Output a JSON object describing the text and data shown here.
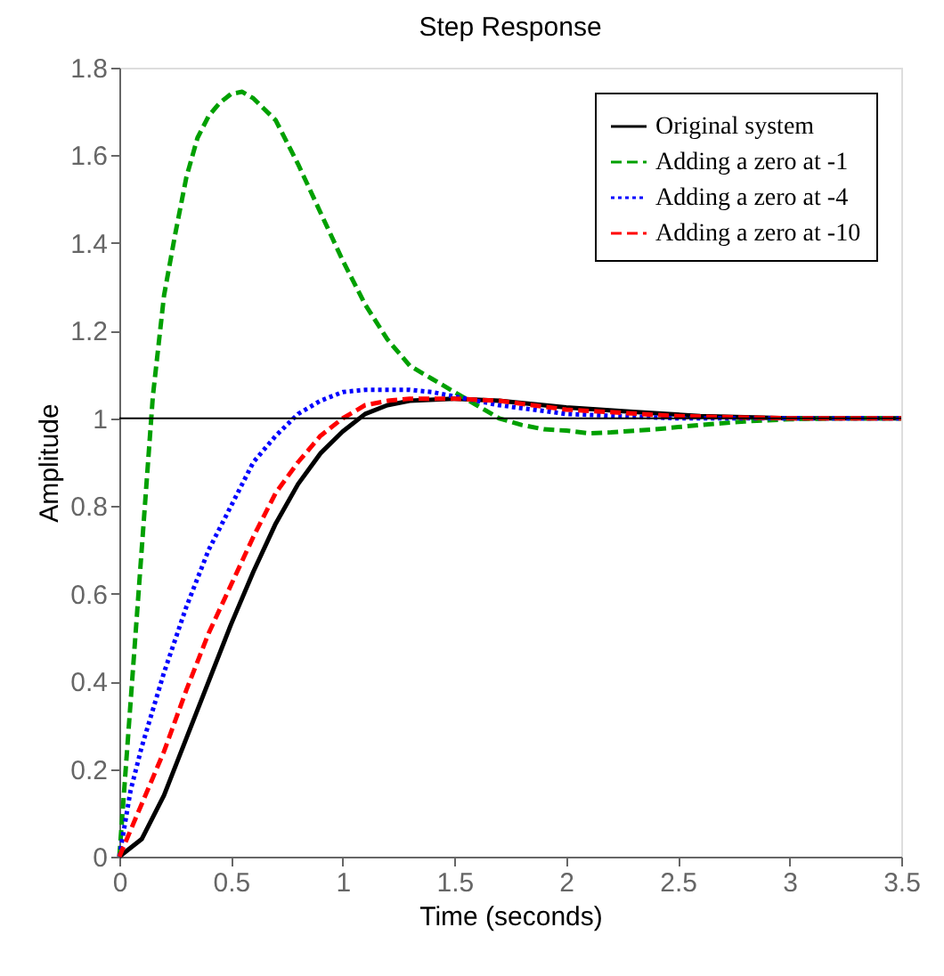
{
  "chart_data": {
    "type": "line",
    "title": "Step Response",
    "xlabel": "Time (seconds)",
    "ylabel": "Amplitude",
    "xlim": [
      0,
      3.5
    ],
    "xticks": [
      0,
      0.5,
      1,
      1.5,
      2,
      2.5,
      3,
      3.5
    ],
    "ylim": [
      0,
      1.8
    ],
    "yticks": [
      0,
      0.2,
      0.4,
      0.6,
      0.8,
      1,
      1.2,
      1.4,
      1.6,
      1.8
    ],
    "grid": false,
    "legend": "top right",
    "marker": "none",
    "ref_lines": [
      {
        "axis": "y",
        "value": 1,
        "color": "#000000",
        "line_style": "solid"
      }
    ],
    "series": [
      {
        "name": "Original system",
        "color": "#000000",
        "line_style": "solid",
        "x": [
          0,
          0.1,
          0.2,
          0.3,
          0.4,
          0.5,
          0.6,
          0.7,
          0.8,
          0.9,
          1.0,
          1.1,
          1.2,
          1.3,
          1.5,
          1.7,
          2.0,
          2.3,
          2.6,
          3.0,
          3.5
        ],
        "values": [
          0,
          0.04,
          0.14,
          0.27,
          0.4,
          0.53,
          0.65,
          0.76,
          0.85,
          0.92,
          0.97,
          1.01,
          1.03,
          1.04,
          1.045,
          1.04,
          1.025,
          1.015,
          1.005,
          1.0,
          1.0
        ]
      },
      {
        "name": "Adding a zero at -1",
        "color": "#00a000",
        "line_style": "dashed",
        "x": [
          0,
          0.05,
          0.1,
          0.15,
          0.2,
          0.25,
          0.3,
          0.35,
          0.4,
          0.45,
          0.5,
          0.55,
          0.6,
          0.7,
          0.8,
          0.9,
          1.0,
          1.1,
          1.2,
          1.3,
          1.4,
          1.5,
          1.6,
          1.7,
          1.8,
          1.9,
          2.0,
          2.1,
          2.2,
          2.4,
          2.6,
          2.8,
          3.0,
          3.2,
          3.5
        ],
        "values": [
          0,
          0.35,
          0.7,
          1.05,
          1.28,
          1.42,
          1.55,
          1.64,
          1.69,
          1.72,
          1.74,
          1.745,
          1.73,
          1.68,
          1.58,
          1.47,
          1.36,
          1.26,
          1.18,
          1.12,
          1.09,
          1.06,
          1.03,
          1.0,
          0.985,
          0.975,
          0.972,
          0.966,
          0.968,
          0.975,
          0.985,
          0.993,
          0.998,
          1.0,
          1.0
        ]
      },
      {
        "name": "Adding a zero at -4",
        "color": "#0000ff",
        "line_style": "dotted",
        "x": [
          0,
          0.05,
          0.1,
          0.2,
          0.3,
          0.4,
          0.5,
          0.6,
          0.7,
          0.8,
          0.9,
          1.0,
          1.1,
          1.2,
          1.3,
          1.4,
          1.5,
          1.7,
          2.0,
          2.5,
          3.5
        ],
        "values": [
          0,
          0.15,
          0.25,
          0.42,
          0.57,
          0.7,
          0.8,
          0.9,
          0.96,
          1.01,
          1.04,
          1.06,
          1.065,
          1.065,
          1.065,
          1.06,
          1.05,
          1.03,
          1.01,
          1.0,
          1.0
        ]
      },
      {
        "name": "Adding a zero at -10",
        "color": "#ff0000",
        "line_style": "dashed",
        "x": [
          0,
          0.1,
          0.2,
          0.3,
          0.4,
          0.5,
          0.6,
          0.7,
          0.8,
          0.9,
          1.0,
          1.1,
          1.2,
          1.3,
          1.5,
          1.7,
          2.0,
          2.5,
          3.0,
          3.5
        ],
        "values": [
          0,
          0.12,
          0.24,
          0.38,
          0.51,
          0.62,
          0.73,
          0.83,
          0.9,
          0.96,
          1.0,
          1.03,
          1.04,
          1.045,
          1.045,
          1.04,
          1.02,
          1.005,
          1.0,
          1.0
        ]
      }
    ]
  }
}
